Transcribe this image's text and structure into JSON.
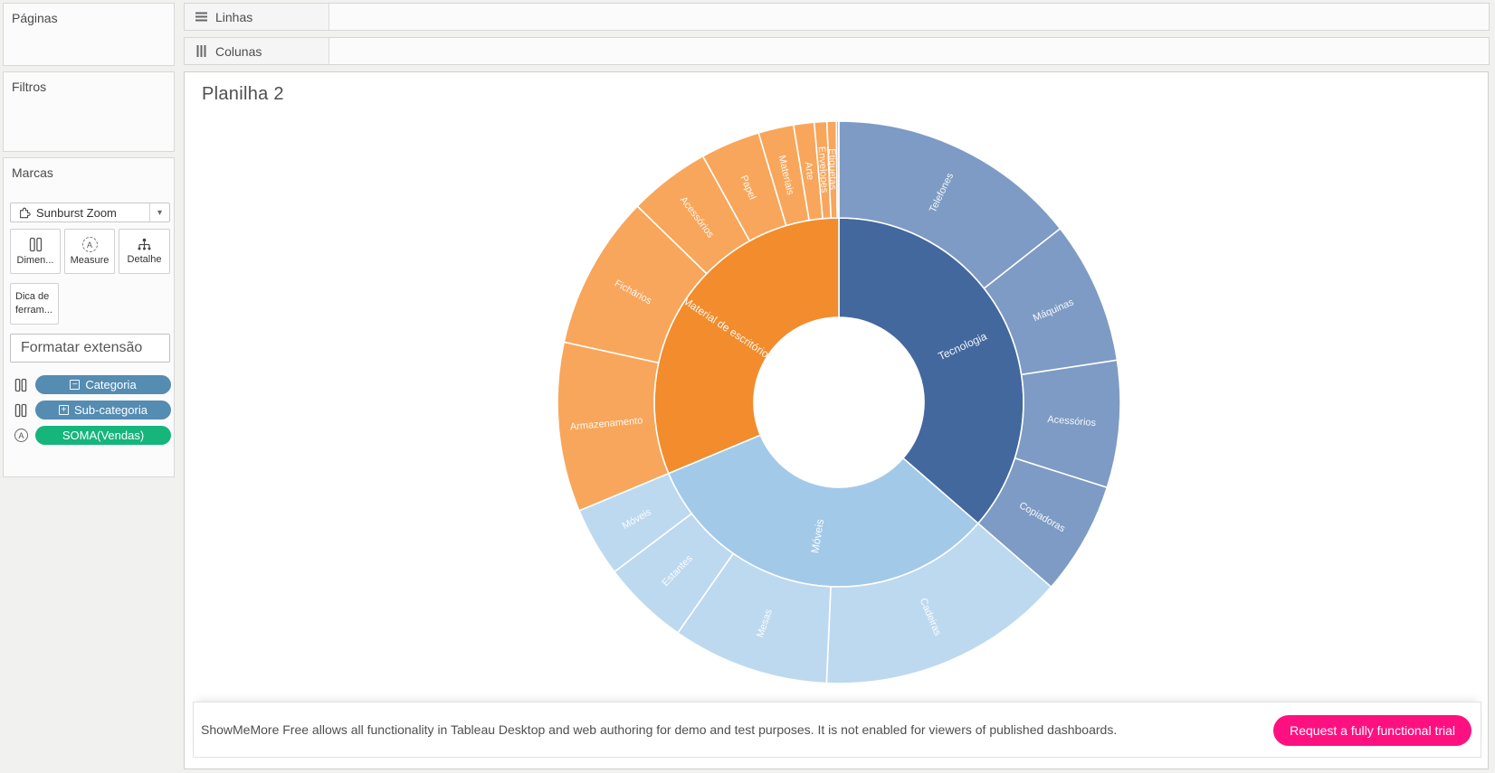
{
  "sidebar": {
    "pages_title": "Páginas",
    "filters_title": "Filtros",
    "marks": {
      "title": "Marcas",
      "mark_type": "Sunburst Zoom",
      "buttons": [
        {
          "label": "Dimen...",
          "icon": "dimension-icon"
        },
        {
          "label": "Measure",
          "icon": "measure-icon"
        },
        {
          "label": "Detalhe",
          "icon": "detail-icon"
        }
      ],
      "tooltip_button_label": "Dica de ferram...",
      "format_extension_value": "Formatar extensão",
      "pills": [
        {
          "prefix": "−",
          "label": "Categoria",
          "color": "#558cb2",
          "row_icon": "dimension-icon"
        },
        {
          "prefix": "+",
          "label": "Sub-categoria",
          "color": "#558cb2",
          "row_icon": "dimension-icon"
        },
        {
          "prefix": "",
          "label": "SOMA(Vendas)",
          "color": "#15b57c",
          "row_icon": "measure-a-icon"
        }
      ]
    }
  },
  "shelves": {
    "rows_label": "Linhas",
    "columns_label": "Colunas"
  },
  "sheet": {
    "title": "Planilha 2"
  },
  "banner": {
    "message": "ShowMeMore Free allows all functionality in Tableau Desktop and web authoring for demo and test purposes. It is not enabled for viewers of published dashboards.",
    "button_label": "Request a fully functional trial",
    "button_color": "#ff1081"
  },
  "icons": {
    "letter_a": "A",
    "chevron_down": "▾",
    "rows": "three-horizontal-bars",
    "columns": "three-vertical-bars",
    "extension": "puzzle-piece",
    "dimension": "two-pane-columns",
    "detail": "hierarchy-dots"
  },
  "chart_data": {
    "type": "pie",
    "variant": "sunburst",
    "title": "Planilha 2",
    "rings": {
      "inner": "Categoria",
      "outer": "Sub-categoria"
    },
    "measure": "SOMA(Vendas), share of total in %",
    "start_angle_deg": 0,
    "direction": "clockwise",
    "label_color": "#ffffff",
    "categories": [
      {
        "label": "Tecnologia",
        "share_pct": 36.4,
        "inner_color": "#42689e",
        "outer_color": "#7d9bc4",
        "children": [
          {
            "label": "Telefones",
            "share_pct": 14.4
          },
          {
            "label": "Máquinas",
            "share_pct": 8.2
          },
          {
            "label": "Acessórios",
            "share_pct": 7.3
          },
          {
            "label": "Copiadoras",
            "share_pct": 6.5
          }
        ]
      },
      {
        "label": "Móveis",
        "share_pct": 32.3,
        "inner_color": "#a3c9e8",
        "outer_color": "#bdd9f0",
        "children": [
          {
            "label": "Cadeiras",
            "share_pct": 14.3
          },
          {
            "label": "Mesas",
            "share_pct": 9.0
          },
          {
            "label": "Estantes",
            "share_pct": 5.0
          },
          {
            "label": "Móveis",
            "share_pct": 4.0
          }
        ]
      },
      {
        "label": "Material de escritório",
        "share_pct": 31.3,
        "inner_color": "#f28c2c",
        "outer_color": "#f8a65b",
        "children": [
          {
            "label": "Armazenamento",
            "share_pct": 9.74
          },
          {
            "label": "Fichários",
            "share_pct": 8.85
          },
          {
            "label": "Acessórios",
            "share_pct": 4.68
          },
          {
            "label": "Papel",
            "share_pct": 3.42
          },
          {
            "label": "Materiais",
            "share_pct": 2.03
          },
          {
            "label": "Arte",
            "share_pct": 1.18
          },
          {
            "label": "Envelopes",
            "share_pct": 0.72
          },
          {
            "label": "Etiquetas",
            "share_pct": 0.54
          },
          {
            "label": "",
            "share_pct": 0.13
          }
        ]
      }
    ]
  }
}
